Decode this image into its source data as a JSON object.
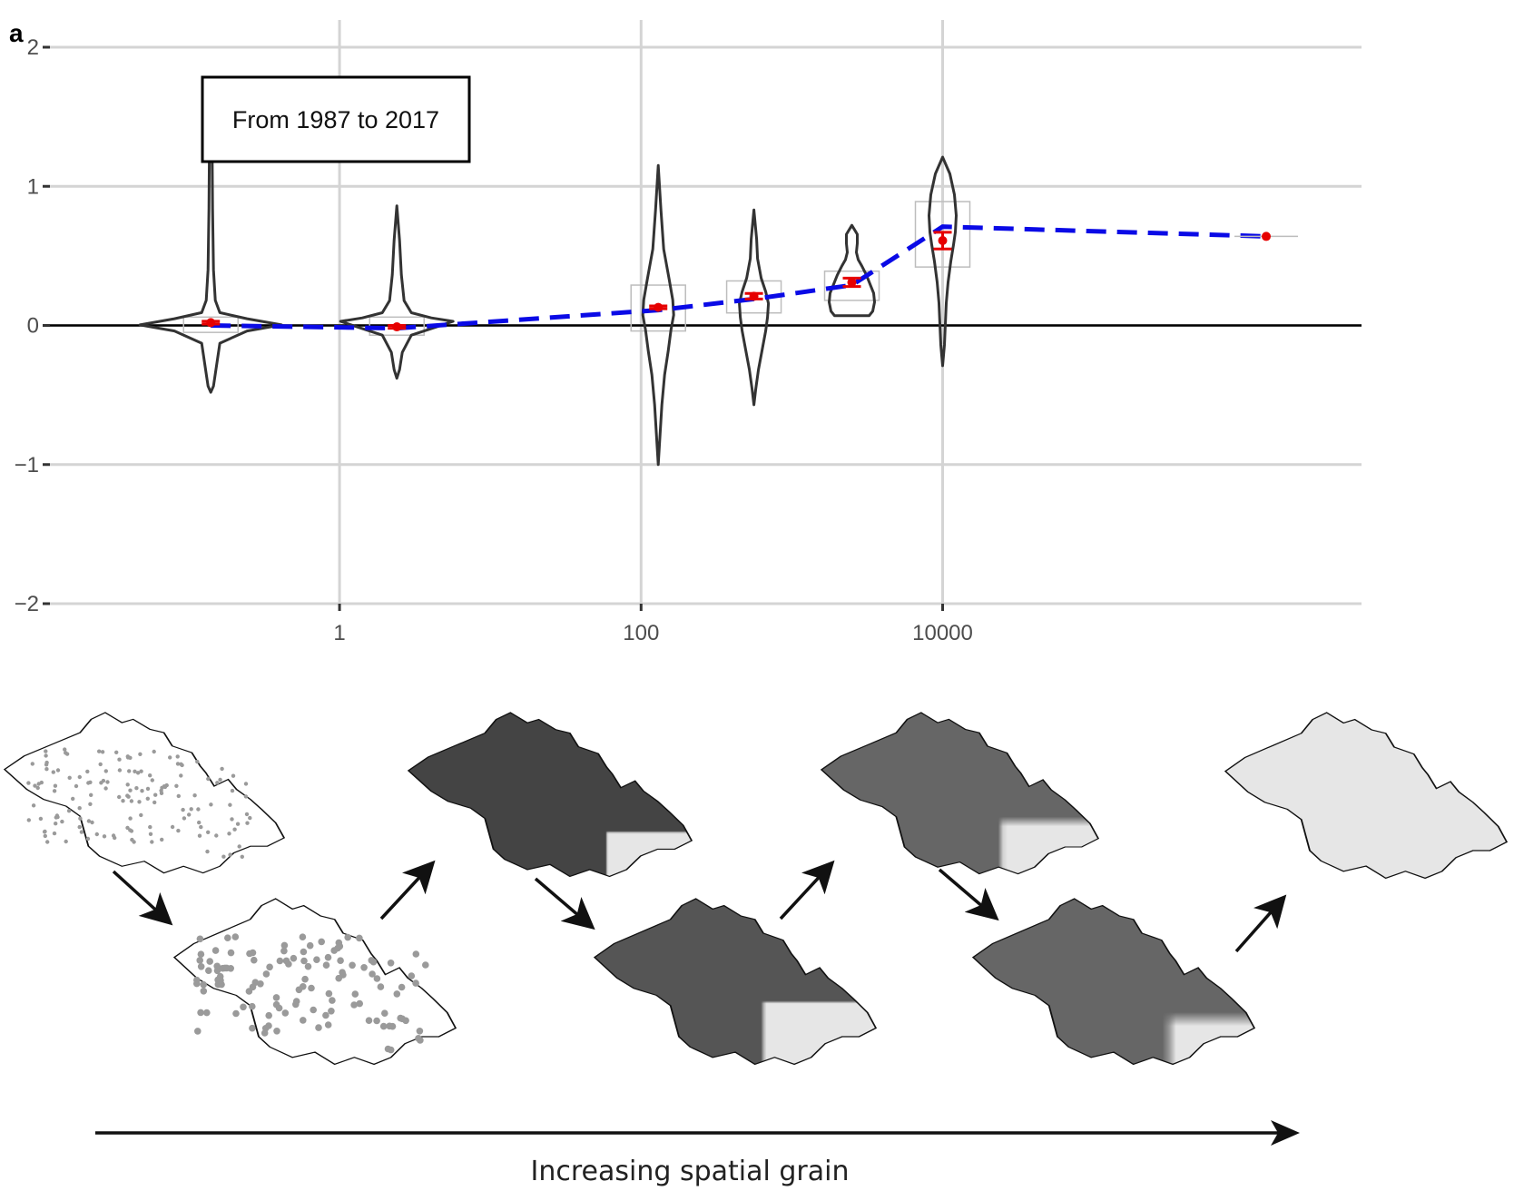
{
  "panel_label": "a",
  "inset_text": "From 1987 to 2017",
  "caption": "Increasing spatial grain",
  "colors": {
    "trend_line": "#0a0ae6",
    "mean_marker": "#e60000",
    "violin_stroke": "#333333",
    "grid": "#d4d4d4",
    "map_fill": "#e6e6e6",
    "points": "#9a9a9a"
  },
  "chart_data": {
    "type": "violin",
    "title": "",
    "xlabel": "",
    "ylabel": "",
    "x_scale": "log10",
    "xlim": [
      0.012,
      6000000
    ],
    "ylim": [
      -2,
      2
    ],
    "grid": true,
    "x_ticks": [
      {
        "value": 1,
        "label": "1"
      },
      {
        "value": 100,
        "label": "100"
      },
      {
        "value": 10000,
        "label": "10000"
      }
    ],
    "y_ticks": [
      {
        "value": 2,
        "label": "2"
      },
      {
        "value": 1,
        "label": "1"
      },
      {
        "value": 0,
        "label": "0"
      },
      {
        "value": -1,
        "label": "−1"
      },
      {
        "value": -2,
        "label": "−2"
      }
    ],
    "reference_line_y": 0,
    "violins": [
      {
        "x": 0.14,
        "min": -0.48,
        "max": 1.72,
        "mean": 0.02,
        "ci": [
          0.01,
          0.03
        ],
        "box": [
          -0.05,
          0.06
        ]
      },
      {
        "x": 2.4,
        "min": -0.38,
        "max": 0.86,
        "mean": -0.01,
        "ci": [
          -0.02,
          0.0
        ],
        "box": [
          -0.07,
          0.06
        ]
      },
      {
        "x": 130,
        "min": -1.0,
        "max": 1.15,
        "mean": 0.13,
        "ci": [
          0.12,
          0.14
        ],
        "box": [
          -0.04,
          0.29
        ]
      },
      {
        "x": 560,
        "min": -0.57,
        "max": 0.83,
        "mean": 0.21,
        "ci": [
          0.19,
          0.23
        ],
        "box": [
          0.09,
          0.32
        ]
      },
      {
        "x": 2500,
        "min": 0.07,
        "max": 0.72,
        "mean": 0.31,
        "ci": [
          0.28,
          0.34
        ],
        "box": [
          0.18,
          0.39
        ]
      },
      {
        "x": 10000,
        "min": -0.29,
        "max": 1.21,
        "mean": 0.61,
        "ci": [
          0.55,
          0.67
        ],
        "box": [
          0.42,
          0.89
        ]
      }
    ],
    "final_point": {
      "x": 1400000,
      "y": 0.64
    },
    "trend": {
      "x": [
        0.14,
        2.4,
        130,
        560,
        2500,
        10000,
        1400000
      ],
      "y": [
        0.0,
        -0.02,
        0.11,
        0.19,
        0.29,
        0.71,
        0.64
      ]
    }
  }
}
